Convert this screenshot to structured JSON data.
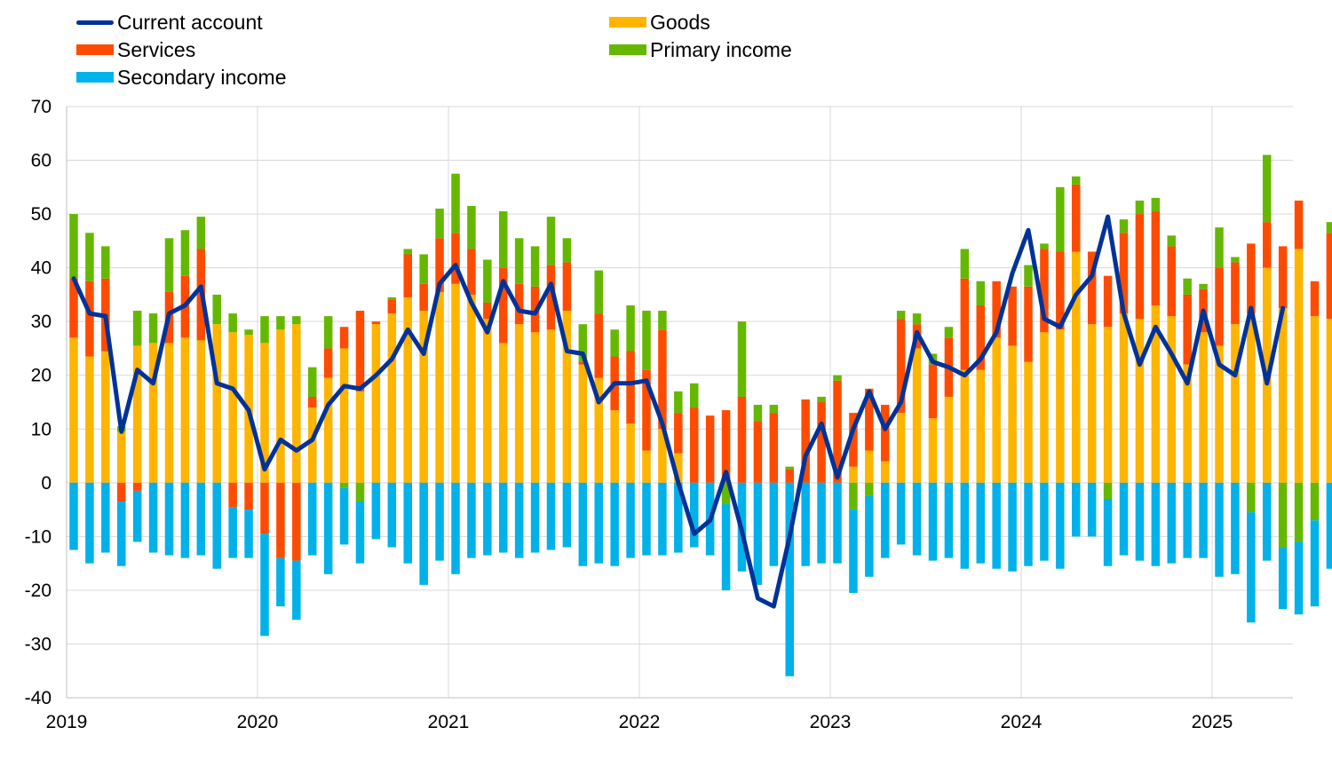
{
  "chart_data": {
    "type": "bar",
    "stacked": true,
    "title": "",
    "xlabel": "",
    "ylabel": "",
    "ylim": [
      -40,
      70
    ],
    "yticks": [
      -40,
      -30,
      -20,
      -10,
      0,
      10,
      20,
      30,
      40,
      50,
      60,
      70
    ],
    "xtick_labels": [
      "2019",
      "2020",
      "2021",
      "2022",
      "2023",
      "2024",
      "2025"
    ],
    "grid": true,
    "legend_position": "top",
    "period": "monthly, January 2019 to June 2025",
    "series": [
      {
        "name": "Goods",
        "color": "#FFB400",
        "kind": "bar",
        "values": [
          27,
          23.5,
          24.5,
          9.5,
          25.5,
          26,
          26,
          27,
          26.5,
          29.5,
          28,
          27.5,
          26,
          28.5,
          29.5,
          14,
          19.5,
          25,
          17,
          29.5,
          31.5,
          34.5,
          32,
          35.5,
          37,
          35,
          30.5,
          26,
          29.5,
          28,
          28.5,
          32,
          22,
          19.5,
          13.5,
          11,
          6,
          10,
          5.5,
          0,
          0,
          0,
          0,
          0,
          0,
          0,
          0,
          0,
          0,
          3,
          6,
          4,
          13,
          25,
          12,
          16,
          21,
          21,
          27,
          25.5,
          22.5,
          28,
          28.5,
          43,
          29.5,
          29,
          31.5,
          30.5,
          33,
          31,
          22,
          28,
          25.5,
          29.5,
          31.5,
          40,
          32.5,
          43.5,
          31,
          30.5
        ]
      },
      {
        "name": "Services",
        "color": "#FF4B00",
        "kind": "bar",
        "values": [
          11,
          14,
          13.5,
          -3.5,
          -1.5,
          0,
          9.5,
          11.5,
          17,
          0,
          -4.5,
          -5,
          -9.5,
          -14,
          -14.5,
          2,
          5.5,
          4,
          15,
          0.5,
          2.5,
          8,
          5,
          10,
          9.5,
          8.5,
          3,
          14,
          7.5,
          8.5,
          12,
          9,
          0.5,
          12,
          10,
          13.5,
          15,
          18.5,
          7.5,
          14,
          12.5,
          13.5,
          16,
          11.5,
          13,
          2.5,
          15.5,
          15,
          19,
          10,
          11.5,
          10.5,
          17.5,
          4.5,
          10,
          11,
          17,
          12,
          10.5,
          11,
          14,
          15.5,
          14.5,
          12.5,
          13.5,
          9.5,
          15,
          19.5,
          17.5,
          13,
          13,
          8,
          14.5,
          11.5,
          13,
          8.5,
          11.5,
          9,
          6.5,
          16
        ]
      },
      {
        "name": "Primary income",
        "color": "#65B800",
        "kind": "bar",
        "values": [
          12,
          9,
          6,
          1,
          6.5,
          5.5,
          10,
          8.5,
          6,
          5.5,
          3.5,
          1,
          5,
          2.5,
          1.5,
          5.5,
          6,
          -1,
          -3.5,
          0,
          0.5,
          1,
          5.5,
          5.5,
          11,
          8,
          8,
          10.5,
          8.5,
          7.5,
          9,
          4.5,
          7,
          8,
          5,
          8.5,
          11,
          3.5,
          4,
          4.5,
          0,
          -4,
          14,
          3,
          1.5,
          0.5,
          0,
          1,
          1,
          -5,
          -2.5,
          0,
          1.5,
          2,
          2,
          2,
          5.5,
          4.5,
          0,
          0,
          4,
          1,
          12,
          1.5,
          0,
          -3,
          2.5,
          2.5,
          2.5,
          2,
          3,
          1,
          7.5,
          1,
          -5.5,
          12.5,
          -12,
          -11,
          -7,
          2
        ]
      },
      {
        "name": "Secondary income",
        "color": "#00B1EA",
        "kind": "bar",
        "values": [
          -12.5,
          -15,
          -13,
          -12,
          -9.5,
          -13,
          -13.5,
          -14,
          -13.5,
          -16,
          -9.5,
          -9,
          -19,
          -9,
          -11,
          -13.5,
          -17,
          -10.5,
          -11.5,
          -10.5,
          -12,
          -15,
          -19,
          -14.5,
          -17,
          -14,
          -13.5,
          -13,
          -14,
          -13,
          -12.5,
          -12,
          -15.5,
          -15,
          -15.5,
          -14,
          -13.5,
          -13.5,
          -13,
          -12,
          -13.5,
          -16,
          -16.5,
          -19,
          -15.5,
          -36,
          -15.5,
          -15,
          -15,
          -15.5,
          -15,
          -14,
          -11.5,
          -13.5,
          -14.5,
          -14,
          -16,
          -15,
          -16,
          -16.5,
          -15.5,
          -14.5,
          -16,
          -10,
          -10,
          -12.5,
          -13.5,
          -14.5,
          -15.5,
          -15,
          -14,
          -14,
          -17.5,
          -17,
          -20.5,
          -14.5,
          -11.5,
          -13.5,
          -16,
          -16
        ]
      },
      {
        "name": "Current account",
        "color": "#003299",
        "kind": "line",
        "values": [
          38,
          31.5,
          31,
          9.5,
          21,
          18.5,
          31.5,
          33,
          36.5,
          18.5,
          17.5,
          13.5,
          2.5,
          8,
          6,
          8,
          14.5,
          18,
          17.5,
          20,
          23,
          28.5,
          24,
          37,
          40.5,
          33.5,
          28,
          37.5,
          32,
          31.5,
          37,
          24.5,
          24,
          15,
          18.5,
          18.5,
          19,
          11,
          0,
          -9.5,
          -7,
          2,
          -9,
          -21.5,
          -23,
          -10,
          5,
          11,
          1,
          10,
          17,
          10,
          15,
          28,
          22.5,
          21.5,
          20,
          23,
          28,
          39,
          47,
          30.5,
          29,
          35,
          38.5,
          49.5,
          31.5,
          22,
          29,
          24,
          18.5,
          32,
          22,
          20,
          32.5,
          18.5,
          32.5,
          null,
          null,
          null
        ]
      }
    ]
  }
}
